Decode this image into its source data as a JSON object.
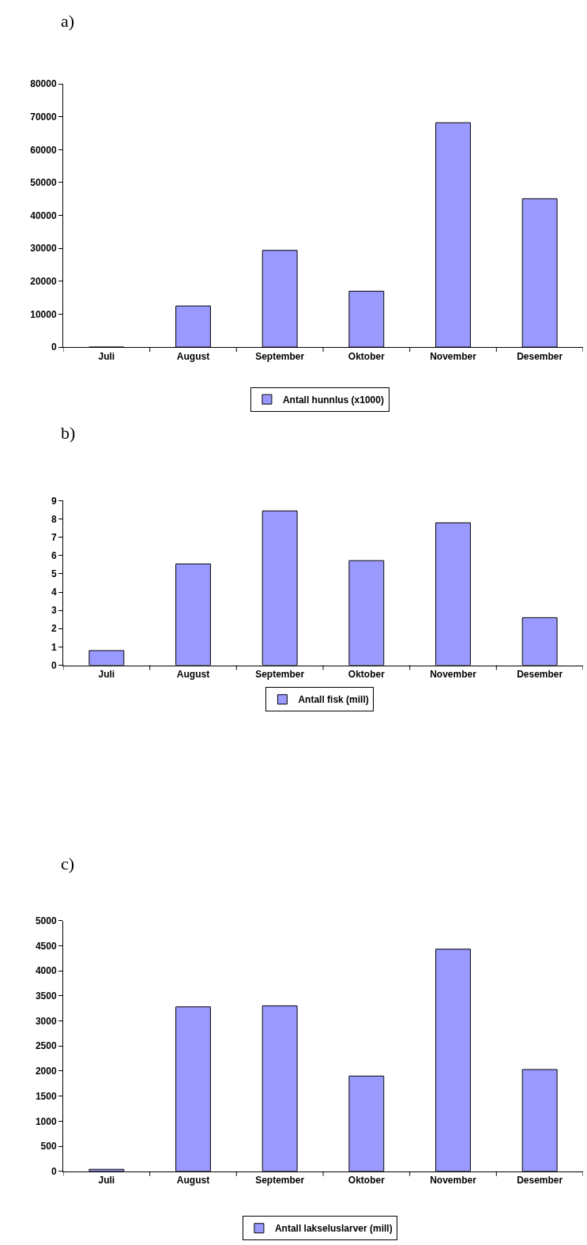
{
  "chart_data": [
    {
      "type": "bar",
      "title": "a)",
      "categories": [
        "Juli",
        "August",
        "September",
        "Oktober",
        "November",
        "Desember"
      ],
      "series": [
        {
          "name": "Antall hunnlus (x1000)",
          "color": "#9999ff",
          "values": [
            0,
            12500,
            29400,
            17000,
            68200,
            45100
          ]
        }
      ],
      "ylim": [
        0,
        80000
      ],
      "yticks": [
        0,
        10000,
        20000,
        30000,
        40000,
        50000,
        60000,
        70000,
        80000
      ],
      "legend": "bottom"
    },
    {
      "type": "bar",
      "title": "b)",
      "categories": [
        "Juli",
        "August",
        "September",
        "Oktober",
        "November",
        "Desember"
      ],
      "series": [
        {
          "name": "Antall fisk (mill)",
          "color": "#9999ff",
          "values": [
            0.8,
            5.54,
            8.44,
            5.72,
            7.79,
            2.6
          ]
        }
      ],
      "ylim": [
        0,
        9
      ],
      "yticks": [
        0,
        1,
        2,
        3,
        4,
        5,
        6,
        7,
        8,
        9
      ],
      "legend": "bottom"
    },
    {
      "type": "bar",
      "title": "c)",
      "categories": [
        "Juli",
        "August",
        "September",
        "Oktober",
        "November",
        "Desember"
      ],
      "series": [
        {
          "name": "Antall lakseluslarver (mill)",
          "color": "#9999ff",
          "values": [
            40,
            3280,
            3300,
            1900,
            4430,
            2030
          ]
        }
      ],
      "ylim": [
        0,
        5000
      ],
      "yticks": [
        0,
        500,
        1000,
        1500,
        2000,
        2500,
        3000,
        3500,
        4000,
        4500,
        5000
      ],
      "legend": "bottom"
    }
  ]
}
